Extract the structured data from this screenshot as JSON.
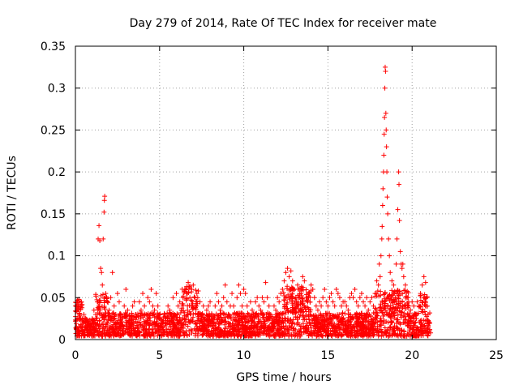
{
  "chart_data": {
    "type": "scatter",
    "title": "Day 279 of 2014, Rate Of TEC Index for receiver mate",
    "xlabel": "GPS time / hours",
    "ylabel": "ROTI / TECUs",
    "xlim": [
      0,
      25
    ],
    "ylim": [
      0,
      0.35
    ],
    "grid": true,
    "marker": "+",
    "series_color": "#ff0000",
    "x_ticks": [
      {
        "value": 0,
        "label": "0"
      },
      {
        "value": 5,
        "label": "5"
      },
      {
        "value": 10,
        "label": "10"
      },
      {
        "value": 15,
        "label": "15"
      },
      {
        "value": 20,
        "label": "20"
      },
      {
        "value": 25,
        "label": "25"
      }
    ],
    "y_ticks": [
      {
        "value": 0,
        "label": "0"
      },
      {
        "value": 0.05,
        "label": "0.05"
      },
      {
        "value": 0.1,
        "label": "0.1"
      },
      {
        "value": 0.15,
        "label": "0.15"
      },
      {
        "value": 0.2,
        "label": "0.2"
      },
      {
        "value": 0.25,
        "label": "0.25"
      },
      {
        "value": 0.3,
        "label": "0.3"
      },
      {
        "value": 0.35,
        "label": "0.35"
      }
    ],
    "points": [
      [
        0.05,
        0.012
      ],
      [
        0.1,
        0.025
      ],
      [
        0.15,
        0.04
      ],
      [
        0.2,
        0.048
      ],
      [
        0.25,
        0.03
      ],
      [
        0.3,
        0.018
      ],
      [
        0.35,
        0.045
      ],
      [
        0.4,
        0.022
      ],
      [
        0.45,
        0.01
      ],
      [
        0.5,
        0.03
      ],
      [
        0.6,
        0.015
      ],
      [
        0.7,
        0.02
      ],
      [
        0.8,
        0.018
      ],
      [
        0.9,
        0.012
      ],
      [
        1.0,
        0.025
      ],
      [
        1.1,
        0.035
      ],
      [
        1.2,
        0.03
      ],
      [
        1.3,
        0.045
      ],
      [
        1.35,
        0.12
      ],
      [
        1.4,
        0.136
      ],
      [
        1.45,
        0.118
      ],
      [
        1.5,
        0.085
      ],
      [
        1.55,
        0.08
      ],
      [
        1.6,
        0.065
      ],
      [
        1.65,
        0.12
      ],
      [
        1.7,
        0.152
      ],
      [
        1.72,
        0.166
      ],
      [
        1.74,
        0.171
      ],
      [
        1.8,
        0.055
      ],
      [
        1.9,
        0.045
      ],
      [
        2.0,
        0.035
      ],
      [
        2.1,
        0.05
      ],
      [
        2.2,
        0.08
      ],
      [
        2.3,
        0.04
      ],
      [
        2.4,
        0.03
      ],
      [
        2.5,
        0.055
      ],
      [
        2.6,
        0.045
      ],
      [
        2.7,
        0.03
      ],
      [
        2.8,
        0.025
      ],
      [
        2.9,
        0.04
      ],
      [
        3.0,
        0.06
      ],
      [
        3.1,
        0.035
      ],
      [
        3.2,
        0.02
      ],
      [
        3.3,
        0.015
      ],
      [
        3.4,
        0.04
      ],
      [
        3.5,
        0.045
      ],
      [
        3.6,
        0.03
      ],
      [
        3.7,
        0.02
      ],
      [
        3.8,
        0.045
      ],
      [
        3.9,
        0.035
      ],
      [
        4.0,
        0.055
      ],
      [
        4.1,
        0.04
      ],
      [
        4.2,
        0.03
      ],
      [
        4.3,
        0.05
      ],
      [
        4.4,
        0.045
      ],
      [
        4.5,
        0.06
      ],
      [
        4.6,
        0.04
      ],
      [
        4.7,
        0.035
      ],
      [
        4.8,
        0.055
      ],
      [
        4.9,
        0.04
      ],
      [
        5.0,
        0.025
      ],
      [
        5.1,
        0.02
      ],
      [
        5.2,
        0.015
      ],
      [
        5.3,
        0.03
      ],
      [
        5.4,
        0.02
      ],
      [
        5.5,
        0.04
      ],
      [
        5.6,
        0.035
      ],
      [
        5.7,
        0.025
      ],
      [
        5.8,
        0.05
      ],
      [
        5.9,
        0.03
      ],
      [
        6.0,
        0.055
      ],
      [
        6.1,
        0.04
      ],
      [
        6.2,
        0.045
      ],
      [
        6.3,
        0.035
      ],
      [
        6.4,
        0.05
      ],
      [
        6.5,
        0.06
      ],
      [
        6.6,
        0.055
      ],
      [
        6.7,
        0.068
      ],
      [
        6.8,
        0.05
      ],
      [
        6.9,
        0.06
      ],
      [
        7.0,
        0.065
      ],
      [
        7.1,
        0.05
      ],
      [
        7.2,
        0.04
      ],
      [
        7.3,
        0.058
      ],
      [
        7.4,
        0.045
      ],
      [
        7.5,
        0.03
      ],
      [
        7.6,
        0.04
      ],
      [
        7.7,
        0.025
      ],
      [
        7.8,
        0.035
      ],
      [
        7.9,
        0.04
      ],
      [
        8.0,
        0.045
      ],
      [
        8.1,
        0.03
      ],
      [
        8.2,
        0.02
      ],
      [
        8.3,
        0.04
      ],
      [
        8.4,
        0.055
      ],
      [
        8.5,
        0.045
      ],
      [
        8.6,
        0.035
      ],
      [
        8.7,
        0.04
      ],
      [
        8.8,
        0.05
      ],
      [
        8.9,
        0.065
      ],
      [
        9.0,
        0.045
      ],
      [
        9.1,
        0.03
      ],
      [
        9.2,
        0.04
      ],
      [
        9.3,
        0.055
      ],
      [
        9.4,
        0.04
      ],
      [
        9.5,
        0.03
      ],
      [
        9.6,
        0.05
      ],
      [
        9.7,
        0.065
      ],
      [
        9.8,
        0.055
      ],
      [
        9.9,
        0.04
      ],
      [
        10.0,
        0.06
      ],
      [
        10.1,
        0.055
      ],
      [
        10.2,
        0.04
      ],
      [
        10.3,
        0.03
      ],
      [
        10.4,
        0.045
      ],
      [
        10.5,
        0.035
      ],
      [
        10.6,
        0.02
      ],
      [
        10.7,
        0.045
      ],
      [
        10.8,
        0.05
      ],
      [
        10.9,
        0.04
      ],
      [
        11.0,
        0.035
      ],
      [
        11.1,
        0.05
      ],
      [
        11.2,
        0.045
      ],
      [
        11.3,
        0.068
      ],
      [
        11.4,
        0.05
      ],
      [
        11.5,
        0.04
      ],
      [
        11.6,
        0.03
      ],
      [
        11.7,
        0.025
      ],
      [
        11.8,
        0.04
      ],
      [
        11.9,
        0.035
      ],
      [
        12.0,
        0.05
      ],
      [
        12.1,
        0.045
      ],
      [
        12.2,
        0.055
      ],
      [
        12.3,
        0.06
      ],
      [
        12.4,
        0.07
      ],
      [
        12.5,
        0.08
      ],
      [
        12.6,
        0.085
      ],
      [
        12.7,
        0.075
      ],
      [
        12.8,
        0.082
      ],
      [
        12.9,
        0.07
      ],
      [
        13.0,
        0.06
      ],
      [
        13.1,
        0.05
      ],
      [
        13.2,
        0.065
      ],
      [
        13.3,
        0.06
      ],
      [
        13.4,
        0.055
      ],
      [
        13.5,
        0.075
      ],
      [
        13.6,
        0.07
      ],
      [
        13.7,
        0.05
      ],
      [
        13.8,
        0.045
      ],
      [
        13.9,
        0.055
      ],
      [
        14.0,
        0.065
      ],
      [
        14.1,
        0.06
      ],
      [
        14.2,
        0.05
      ],
      [
        14.3,
        0.04
      ],
      [
        14.4,
        0.035
      ],
      [
        14.5,
        0.045
      ],
      [
        14.6,
        0.04
      ],
      [
        14.7,
        0.05
      ],
      [
        14.8,
        0.06
      ],
      [
        14.9,
        0.045
      ],
      [
        15.0,
        0.04
      ],
      [
        15.1,
        0.05
      ],
      [
        15.2,
        0.055
      ],
      [
        15.3,
        0.045
      ],
      [
        15.4,
        0.04
      ],
      [
        15.5,
        0.06
      ],
      [
        15.6,
        0.055
      ],
      [
        15.7,
        0.05
      ],
      [
        15.8,
        0.04
      ],
      [
        15.9,
        0.045
      ],
      [
        16.0,
        0.045
      ],
      [
        16.1,
        0.04
      ],
      [
        16.2,
        0.035
      ],
      [
        16.3,
        0.05
      ],
      [
        16.4,
        0.055
      ],
      [
        16.5,
        0.05
      ],
      [
        16.6,
        0.06
      ],
      [
        16.7,
        0.045
      ],
      [
        16.8,
        0.04
      ],
      [
        16.9,
        0.05
      ],
      [
        17.0,
        0.055
      ],
      [
        17.1,
        0.045
      ],
      [
        17.2,
        0.04
      ],
      [
        17.3,
        0.05
      ],
      [
        17.4,
        0.035
      ],
      [
        17.5,
        0.045
      ],
      [
        17.6,
        0.05
      ],
      [
        17.7,
        0.04
      ],
      [
        17.8,
        0.055
      ],
      [
        17.9,
        0.07
      ],
      [
        18.0,
        0.065
      ],
      [
        18.05,
        0.09
      ],
      [
        18.1,
        0.075
      ],
      [
        18.15,
        0.1
      ],
      [
        18.2,
        0.12
      ],
      [
        18.22,
        0.135
      ],
      [
        18.25,
        0.16
      ],
      [
        18.27,
        0.18
      ],
      [
        18.3,
        0.2
      ],
      [
        18.32,
        0.22
      ],
      [
        18.34,
        0.245
      ],
      [
        18.36,
        0.265
      ],
      [
        18.38,
        0.3
      ],
      [
        18.4,
        0.325
      ],
      [
        18.42,
        0.32
      ],
      [
        18.44,
        0.27
      ],
      [
        18.46,
        0.25
      ],
      [
        18.48,
        0.23
      ],
      [
        18.5,
        0.2
      ],
      [
        18.52,
        0.17
      ],
      [
        18.55,
        0.15
      ],
      [
        18.6,
        0.12
      ],
      [
        18.65,
        0.1
      ],
      [
        18.7,
        0.08
      ],
      [
        18.8,
        0.07
      ],
      [
        18.9,
        0.065
      ],
      [
        19.0,
        0.05
      ],
      [
        19.05,
        0.09
      ],
      [
        19.1,
        0.12
      ],
      [
        19.15,
        0.155
      ],
      [
        19.2,
        0.2
      ],
      [
        19.22,
        0.185
      ],
      [
        19.25,
        0.142
      ],
      [
        19.3,
        0.105
      ],
      [
        19.35,
        0.09
      ],
      [
        19.4,
        0.085
      ],
      [
        19.45,
        0.09
      ],
      [
        19.5,
        0.075
      ],
      [
        19.6,
        0.065
      ],
      [
        19.7,
        0.05
      ],
      [
        19.8,
        0.04
      ],
      [
        19.9,
        0.035
      ],
      [
        20.0,
        0.045
      ],
      [
        20.1,
        0.04
      ],
      [
        20.2,
        0.03
      ],
      [
        20.3,
        0.045
      ],
      [
        20.4,
        0.04
      ],
      [
        20.5,
        0.055
      ],
      [
        20.6,
        0.065
      ],
      [
        20.7,
        0.075
      ],
      [
        20.8,
        0.068
      ],
      [
        20.85,
        0.05
      ],
      [
        20.9,
        0.04
      ],
      [
        20.95,
        0.03
      ],
      [
        21.0,
        0.02
      ],
      [
        21.05,
        0.012
      ],
      [
        21.1,
        0.008
      ]
    ]
  }
}
